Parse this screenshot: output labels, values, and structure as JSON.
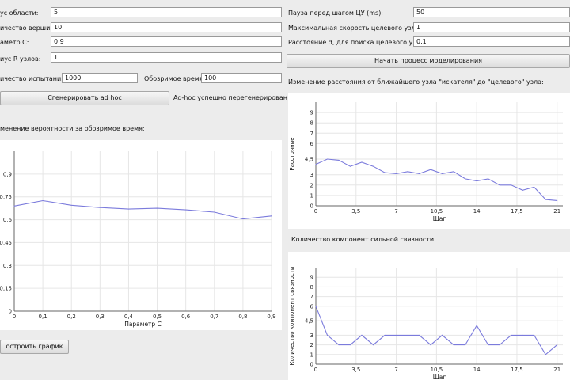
{
  "left_form": {
    "fields": [
      {
        "label": "ус области:",
        "value": "5"
      },
      {
        "label": "ичество вершин:",
        "value": "10"
      },
      {
        "label": "аметр C:",
        "value": "0.9"
      },
      {
        "label": "иус R узлов:",
        "value": "1"
      }
    ],
    "trials_label": "ичество испытаний:",
    "trials_value": "1000",
    "time_label": "Обозримое время:",
    "time_value": "100",
    "generate_button": "Сгенерировать ad hoc",
    "status": "Ad-hoc успешно перегенерирован!",
    "chart_title": "менение вероятности за обозримое время:",
    "build_button": "остроить график"
  },
  "right_form": {
    "fields": [
      {
        "label": "Пауза перед шагом ЦУ (ms):",
        "value": "50"
      },
      {
        "label": "Максимальная скорость целевого узла:",
        "value": "1"
      },
      {
        "label": "Расстояние d, для поиска целевого узла:",
        "value": "0.1"
      }
    ],
    "start_button": "Начать процесс моделирования",
    "distance_title": "Изменение расстояния от ближайшего узла \"искателя\" до \"целевого\" узла:",
    "components_title": "Количество компонент сильной связности:"
  },
  "chart_data": [
    {
      "type": "line",
      "xlabel": "Параметр C",
      "ylabel": "",
      "x": [
        0,
        0.1,
        0.2,
        0.3,
        0.4,
        0.5,
        0.6,
        0.7,
        0.8,
        0.9
      ],
      "values": [
        0.69,
        0.725,
        0.695,
        0.68,
        0.67,
        0.675,
        0.665,
        0.65,
        0.605,
        0.625
      ],
      "xlim": [
        0,
        0.9
      ],
      "ylim": [
        0,
        1.05
      ],
      "xticks": [
        "0",
        "0,1",
        "0,2",
        "0,3",
        "0,4",
        "0,5",
        "0,6",
        "0,7",
        "0,8",
        "0,9"
      ],
      "yticks": [
        "0",
        "0,15",
        "0,3",
        "0,45",
        "0,6",
        "0,75",
        "0,9"
      ],
      "grid": true,
      "color": "#7b7bdc"
    },
    {
      "type": "line",
      "xlabel": "Шаг",
      "ylabel": "Расстояние",
      "x": [
        0,
        1,
        2,
        3,
        4,
        5,
        6,
        7,
        8,
        9,
        10,
        11,
        12,
        13,
        14,
        15,
        16,
        17,
        18,
        19,
        20,
        21
      ],
      "values": [
        4.0,
        4.5,
        4.4,
        3.8,
        4.2,
        3.8,
        3.2,
        3.1,
        3.3,
        3.1,
        3.5,
        3.1,
        3.3,
        2.6,
        2.4,
        2.6,
        2.0,
        2.0,
        1.5,
        1.8,
        0.6,
        0.5
      ],
      "xlim": [
        0,
        21.5
      ],
      "ylim": [
        0,
        10
      ],
      "xticks": [
        "0",
        "3,5",
        "7",
        "10,5",
        "14",
        "17,5",
        "21"
      ],
      "yticks": [
        "0",
        "1",
        "2",
        "3",
        "4,5",
        "6",
        "7",
        "8",
        "9"
      ],
      "grid": true,
      "color": "#7b7bdc"
    },
    {
      "type": "line",
      "xlabel": "Шаг",
      "ylabel": "Количество компонент связности",
      "x": [
        0,
        1,
        2,
        3,
        4,
        5,
        6,
        7,
        8,
        9,
        10,
        11,
        12,
        13,
        14,
        15,
        16,
        17,
        18,
        19,
        20,
        21
      ],
      "values": [
        6,
        3,
        2,
        2,
        3,
        2,
        3,
        3,
        3,
        3,
        2,
        3,
        2,
        2,
        4,
        2,
        2,
        3,
        3,
        3,
        1,
        2
      ],
      "xlim": [
        0,
        21.5
      ],
      "ylim": [
        0,
        10
      ],
      "xticks": [
        "0",
        "3,5",
        "7",
        "10,5",
        "14",
        "17,5",
        "21"
      ],
      "yticks": [
        "0",
        "1",
        "2",
        "3",
        "4,5",
        "6",
        "7",
        "8",
        "9"
      ],
      "grid": true,
      "color": "#7b7bdc"
    }
  ]
}
